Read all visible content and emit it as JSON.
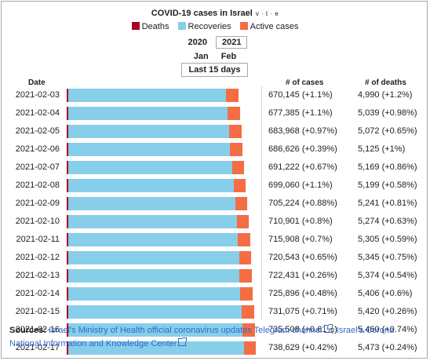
{
  "title": "COVID-19 cases in Israel",
  "vte": "v · t · e",
  "legend": [
    {
      "label": "Deaths",
      "color": "#a50026"
    },
    {
      "label": "Recoveries",
      "color": "#87ceeb"
    },
    {
      "label": "Active cases",
      "color": "#f46d43"
    }
  ],
  "years": [
    "2020",
    "2021"
  ],
  "selected_year": "2021",
  "months": [
    "Jan",
    "Feb"
  ],
  "range_button": "Last 15 days",
  "headers": {
    "date": "Date",
    "cases": "# of cases",
    "deaths": "# of deaths"
  },
  "chart_data": {
    "type": "bar",
    "stacked": true,
    "orientation": "horizontal",
    "title": "COVID-19 cases in Israel",
    "categories": [
      "2021-02-03",
      "2021-02-04",
      "2021-02-05",
      "2021-02-06",
      "2021-02-07",
      "2021-02-08",
      "2021-02-09",
      "2021-02-10",
      "2021-02-11",
      "2021-02-12",
      "2021-02-13",
      "2021-02-14",
      "2021-02-15",
      "2021-02-16",
      "2021-02-17"
    ],
    "cases": [
      670145,
      677385,
      683968,
      686626,
      691222,
      699060,
      705224,
      710901,
      715908,
      720543,
      722431,
      725896,
      731075,
      735508,
      738629
    ],
    "cases_text": [
      "670,145 (+1.1%)",
      "677,385 (+1.1%)",
      "683,968 (+0.97%)",
      "686,626 (+0.39%)",
      "691,222 (+0.67%)",
      "699,060 (+1.1%)",
      "705,224 (+0.88%)",
      "710,901 (+0.8%)",
      "715,908 (+0.7%)",
      "720,543 (+0.65%)",
      "722,431 (+0.26%)",
      "725,896 (+0.48%)",
      "731,075 (+0.71%)",
      "735,508 (+0.61%)",
      "738,629 (+0.42%)"
    ],
    "deaths": [
      4990,
      5039,
      5072,
      5125,
      5169,
      5199,
      5241,
      5274,
      5305,
      5345,
      5374,
      5406,
      5420,
      5460,
      5473
    ],
    "deaths_text": [
      "4,990 (+1.2%)",
      "5,039 (+0.98%)",
      "5,072 (+0.65%)",
      "5,125 (+1%)",
      "5,169 (+0.86%)",
      "5,199 (+0.58%)",
      "5,241 (+0.81%)",
      "5,274 (+0.63%)",
      "5,305 (+0.59%)",
      "5,345 (+0.75%)",
      "5,374 (+0.54%)",
      "5,406 (+0.6%)",
      "5,420 (+0.26%)",
      "5,460 (+0.74%)",
      "5,473 (+0.24%)"
    ],
    "recoveries": [
      617000,
      623000,
      629000,
      632500,
      640000,
      646000,
      652000,
      657500,
      662000,
      667000,
      669000,
      672500,
      677000,
      681500,
      685000
    ],
    "series_colors": {
      "deaths": "#a50026",
      "recoveries": "#87ceeb",
      "active": "#f46d43"
    }
  },
  "sources": {
    "label": "Sources:",
    "links": [
      "Israel's Ministry of Health official coronavirus updates Telegram channel",
      "Israel's Corona National Information and Knowledge Center"
    ],
    "separator": ", "
  }
}
